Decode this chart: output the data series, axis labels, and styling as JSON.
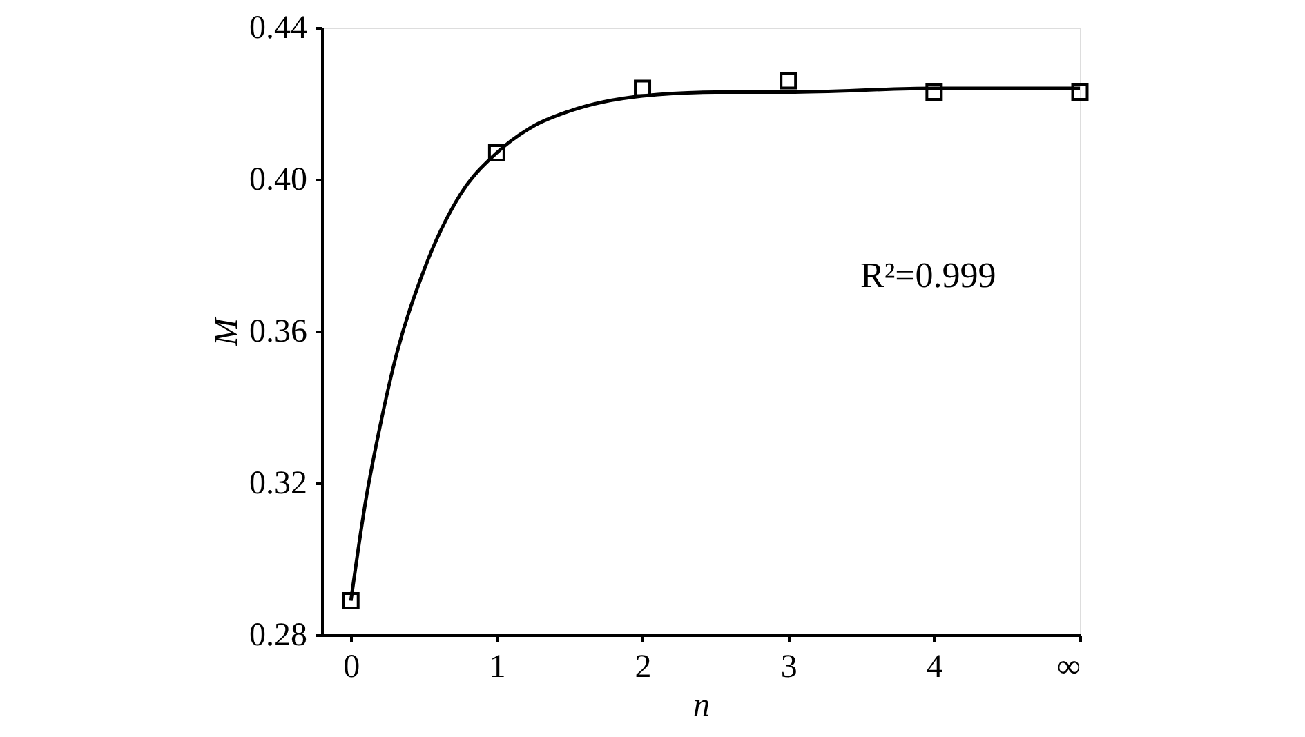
{
  "chart_data": {
    "type": "scatter",
    "xlabel": "n",
    "ylabel": "M",
    "annotations": [
      "R²=0.999"
    ],
    "xlim": [
      -0.2,
      5
    ],
    "ylim": [
      0.28,
      0.44
    ],
    "xticks": [
      0,
      1,
      2,
      3,
      4,
      {
        "value": 5,
        "label": "∞"
      }
    ],
    "yticks": [
      {
        "value": 0.28,
        "label": "0.28"
      },
      {
        "value": 0.32,
        "label": "0.32"
      },
      {
        "value": 0.36,
        "label": "0.36"
      },
      {
        "value": 0.4,
        "label": "0.40"
      },
      {
        "value": 0.44,
        "label": "0.44"
      }
    ],
    "grid": false,
    "series": [
      {
        "marker": "square",
        "color": "#000000",
        "x": [
          0,
          1,
          2,
          3,
          4,
          5
        ],
        "values": [
          0.289,
          0.407,
          0.424,
          0.426,
          0.423,
          0.423
        ]
      },
      {
        "type": "line",
        "marker": "none",
        "line_style": "solid",
        "color": "#000000",
        "x": [
          0,
          0.1,
          0.2,
          0.3,
          0.5,
          0.75,
          1,
          1.25,
          1.5,
          2,
          2.5,
          3,
          4,
          5
        ],
        "values": [
          0.289,
          0.315,
          0.335,
          0.352,
          0.376,
          0.396,
          0.407,
          0.414,
          0.418,
          0.422,
          0.423,
          0.423,
          0.424,
          0.424
        ]
      }
    ]
  }
}
